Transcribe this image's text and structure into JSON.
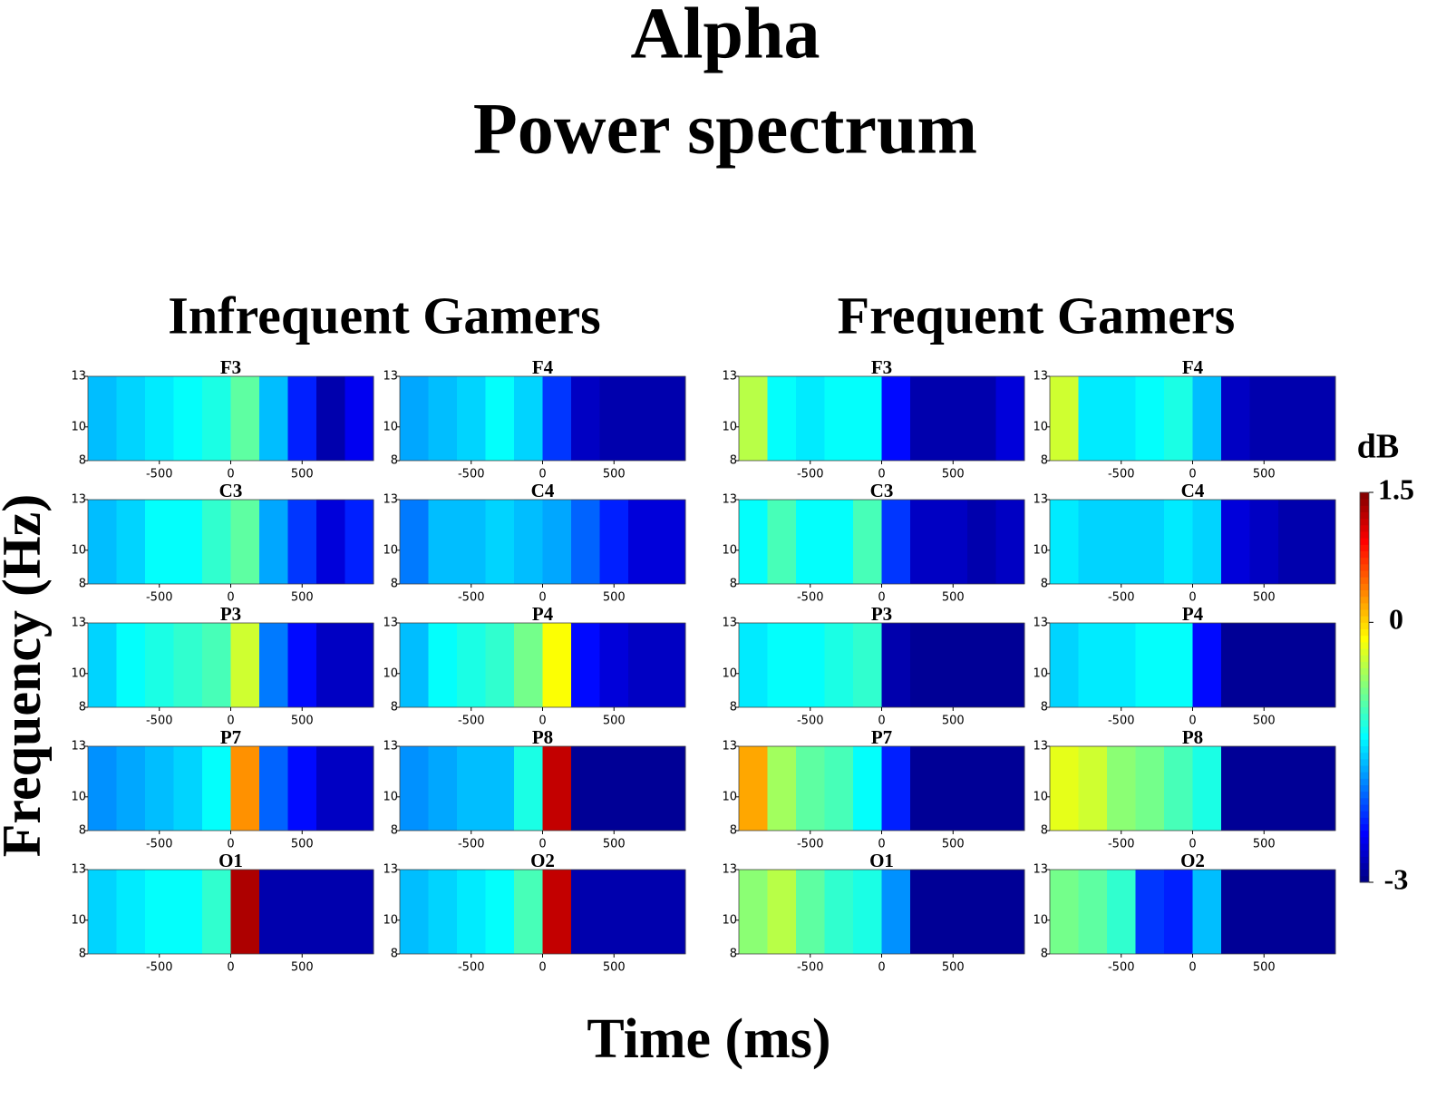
{
  "title": [
    "Alpha",
    "Power spectrum"
  ],
  "groups": [
    "Infrequent Gamers",
    "Frequent Gamers"
  ],
  "xlabel": "Time (ms)",
  "ylabel": "Frequency (Hz)",
  "colorbar": {
    "label": "dB",
    "lim": [
      -3,
      1.5
    ],
    "ticks": [
      1.5,
      0,
      -3
    ]
  },
  "chart_data": [
    {
      "type": "heatmap",
      "title": "F3",
      "x": [
        -900,
        -700,
        -500,
        -300,
        -100,
        100,
        300,
        500,
        700,
        900
      ],
      "values": [
        -1.6,
        -1.5,
        -1.4,
        -1.3,
        -1.2,
        -0.9,
        -1.6,
        -2.3,
        -2.8,
        -2.5
      ],
      "xlim": [
        -1000,
        1000
      ],
      "ylim": [
        8,
        13
      ],
      "xticks": [
        -500,
        0,
        500
      ],
      "yticks": [
        8,
        10,
        13
      ]
    },
    {
      "type": "heatmap",
      "title": "F4",
      "x": [
        -900,
        -700,
        -500,
        -300,
        -100,
        100,
        300,
        500,
        700,
        900
      ],
      "values": [
        -1.7,
        -1.6,
        -1.5,
        -1.3,
        -1.5,
        -2.2,
        -2.7,
        -2.8,
        -2.8,
        -2.8
      ],
      "xlim": [
        -1000,
        1000
      ],
      "ylim": [
        8,
        13
      ],
      "xticks": [
        -500,
        0,
        500
      ],
      "yticks": [
        8,
        10,
        13
      ]
    },
    {
      "type": "heatmap",
      "title": "C3",
      "x": [
        -900,
        -700,
        -500,
        -300,
        -100,
        100,
        300,
        500,
        700,
        900
      ],
      "values": [
        -1.6,
        -1.5,
        -1.3,
        -1.3,
        -1.1,
        -0.9,
        -1.7,
        -2.2,
        -2.6,
        -2.3
      ],
      "xlim": [
        -1000,
        1000
      ],
      "ylim": [
        8,
        13
      ],
      "xticks": [
        -500,
        0,
        500
      ],
      "yticks": [
        8,
        10,
        13
      ]
    },
    {
      "type": "heatmap",
      "title": "C4",
      "x": [
        -900,
        -700,
        -500,
        -300,
        -100,
        100,
        300,
        500,
        700,
        900
      ],
      "values": [
        -1.9,
        -1.6,
        -1.6,
        -1.5,
        -1.6,
        -1.7,
        -2.0,
        -2.3,
        -2.6,
        -2.6
      ],
      "xlim": [
        -1000,
        1000
      ],
      "ylim": [
        8,
        13
      ],
      "xticks": [
        -500,
        0,
        500
      ],
      "yticks": [
        8,
        10,
        13
      ]
    },
    {
      "type": "heatmap",
      "title": "P3",
      "x": [
        -900,
        -700,
        -500,
        -300,
        -100,
        100,
        300,
        500,
        700,
        900
      ],
      "values": [
        -1.5,
        -1.3,
        -1.2,
        -1.1,
        -1.0,
        -0.4,
        -1.9,
        -2.4,
        -2.7,
        -2.7
      ],
      "xlim": [
        -1000,
        1000
      ],
      "ylim": [
        8,
        13
      ],
      "xticks": [
        -500,
        0,
        500
      ],
      "yticks": [
        8,
        10,
        13
      ]
    },
    {
      "type": "heatmap",
      "title": "P4",
      "x": [
        -900,
        -700,
        -500,
        -300,
        -100,
        100,
        300,
        500,
        700,
        900
      ],
      "values": [
        -1.6,
        -1.3,
        -1.2,
        -1.1,
        -0.8,
        -0.2,
        -2.4,
        -2.6,
        -2.7,
        -2.7
      ],
      "xlim": [
        -1000,
        1000
      ],
      "ylim": [
        8,
        13
      ],
      "xticks": [
        -500,
        0,
        500
      ],
      "yticks": [
        8,
        10,
        13
      ]
    },
    {
      "type": "heatmap",
      "title": "P7",
      "x": [
        -900,
        -700,
        -500,
        -300,
        -100,
        100,
        300,
        500,
        700,
        900
      ],
      "values": [
        -1.8,
        -1.7,
        -1.6,
        -1.5,
        -1.3,
        0.3,
        -2.0,
        -2.4,
        -2.7,
        -2.7
      ],
      "xlim": [
        -1000,
        1000
      ],
      "ylim": [
        8,
        13
      ],
      "xticks": [
        -500,
        0,
        500
      ],
      "yticks": [
        8,
        10,
        13
      ]
    },
    {
      "type": "heatmap",
      "title": "P8",
      "x": [
        -900,
        -700,
        -500,
        -300,
        -100,
        100,
        300,
        500,
        700,
        900
      ],
      "values": [
        -1.8,
        -1.7,
        -1.6,
        -1.6,
        -1.2,
        1.2,
        -2.9,
        -2.9,
        -2.9,
        -2.9
      ],
      "xlim": [
        -1000,
        1000
      ],
      "ylim": [
        8,
        13
      ],
      "xticks": [
        -500,
        0,
        500
      ],
      "yticks": [
        8,
        10,
        13
      ]
    },
    {
      "type": "heatmap",
      "title": "O1",
      "x": [
        -900,
        -700,
        -500,
        -300,
        -100,
        100,
        300,
        500,
        700,
        900
      ],
      "values": [
        -1.5,
        -1.4,
        -1.3,
        -1.3,
        -1.1,
        1.3,
        -2.8,
        -2.8,
        -2.8,
        -2.8
      ],
      "xlim": [
        -1000,
        1000
      ],
      "ylim": [
        8,
        13
      ],
      "xticks": [
        -500,
        0,
        500
      ],
      "yticks": [
        8,
        10,
        13
      ]
    },
    {
      "type": "heatmap",
      "title": "O2",
      "x": [
        -900,
        -700,
        -500,
        -300,
        -100,
        100,
        300,
        500,
        700,
        900
      ],
      "values": [
        -1.6,
        -1.5,
        -1.4,
        -1.3,
        -1.0,
        1.2,
        -2.8,
        -2.8,
        -2.8,
        -2.8
      ],
      "xlim": [
        -1000,
        1000
      ],
      "ylim": [
        8,
        13
      ],
      "xticks": [
        -500,
        0,
        500
      ],
      "yticks": [
        8,
        10,
        13
      ]
    },
    {
      "type": "heatmap",
      "title": "F3",
      "x": [
        -900,
        -700,
        -500,
        -300,
        -100,
        100,
        300,
        500,
        700,
        900
      ],
      "values": [
        -0.5,
        -1.3,
        -1.4,
        -1.3,
        -1.3,
        -2.4,
        -2.8,
        -2.8,
        -2.8,
        -2.6
      ],
      "xlim": [
        -1000,
        1000
      ],
      "ylim": [
        8,
        13
      ],
      "xticks": [
        -500,
        0,
        500
      ],
      "yticks": [
        8,
        10,
        13
      ]
    },
    {
      "type": "heatmap",
      "title": "F4",
      "x": [
        -900,
        -700,
        -500,
        -300,
        -100,
        100,
        300,
        500,
        700,
        900
      ],
      "values": [
        -0.4,
        -1.4,
        -1.4,
        -1.3,
        -1.2,
        -1.6,
        -2.7,
        -2.8,
        -2.8,
        -2.8
      ],
      "xlim": [
        -1000,
        1000
      ],
      "ylim": [
        8,
        13
      ],
      "xticks": [
        -500,
        0,
        500
      ],
      "yticks": [
        8,
        10,
        13
      ]
    },
    {
      "type": "heatmap",
      "title": "C3",
      "x": [
        -900,
        -700,
        -500,
        -300,
        -100,
        100,
        300,
        500,
        700,
        900
      ],
      "values": [
        -1.3,
        -1.0,
        -1.3,
        -1.3,
        -1.0,
        -2.2,
        -2.7,
        -2.7,
        -2.8,
        -2.7
      ],
      "xlim": [
        -1000,
        1000
      ],
      "ylim": [
        8,
        13
      ],
      "xticks": [
        -500,
        0,
        500
      ],
      "yticks": [
        8,
        10,
        13
      ]
    },
    {
      "type": "heatmap",
      "title": "C4",
      "x": [
        -900,
        -700,
        -500,
        -300,
        -100,
        100,
        300,
        500,
        700,
        900
      ],
      "values": [
        -1.4,
        -1.5,
        -1.5,
        -1.5,
        -1.4,
        -1.5,
        -2.6,
        -2.7,
        -2.8,
        -2.8
      ],
      "xlim": [
        -1000,
        1000
      ],
      "ylim": [
        8,
        13
      ],
      "xticks": [
        -500,
        0,
        500
      ],
      "yticks": [
        8,
        10,
        13
      ]
    },
    {
      "type": "heatmap",
      "title": "P3",
      "x": [
        -900,
        -700,
        -500,
        -300,
        -100,
        100,
        300,
        500,
        700,
        900
      ],
      "values": [
        -1.4,
        -1.3,
        -1.3,
        -1.2,
        -1.1,
        -2.8,
        -2.9,
        -2.9,
        -2.9,
        -2.9
      ],
      "xlim": [
        -1000,
        1000
      ],
      "ylim": [
        8,
        13
      ],
      "xticks": [
        -500,
        0,
        500
      ],
      "yticks": [
        8,
        10,
        13
      ]
    },
    {
      "type": "heatmap",
      "title": "P4",
      "x": [
        -900,
        -700,
        -500,
        -300,
        -100,
        100,
        300,
        500,
        700,
        900
      ],
      "values": [
        -1.5,
        -1.4,
        -1.4,
        -1.3,
        -1.3,
        -2.4,
        -2.9,
        -2.9,
        -2.9,
        -2.9
      ],
      "xlim": [
        -1000,
        1000
      ],
      "ylim": [
        8,
        13
      ],
      "xticks": [
        -500,
        0,
        500
      ],
      "yticks": [
        8,
        10,
        13
      ]
    },
    {
      "type": "heatmap",
      "title": "P7",
      "x": [
        -900,
        -700,
        -500,
        -300,
        -100,
        100,
        300,
        500,
        700,
        900
      ],
      "values": [
        0.2,
        -0.6,
        -0.9,
        -1.0,
        -1.3,
        -2.3,
        -2.9,
        -2.9,
        -2.9,
        -2.9
      ],
      "xlim": [
        -1000,
        1000
      ],
      "ylim": [
        8,
        13
      ],
      "xticks": [
        -500,
        0,
        500
      ],
      "yticks": [
        8,
        10,
        13
      ]
    },
    {
      "type": "heatmap",
      "title": "P8",
      "x": [
        -900,
        -700,
        -500,
        -300,
        -100,
        100,
        300,
        500,
        700,
        900
      ],
      "values": [
        -0.3,
        -0.4,
        -0.7,
        -0.8,
        -1.0,
        -1.2,
        -2.9,
        -2.9,
        -2.9,
        -2.9
      ],
      "xlim": [
        -1000,
        1000
      ],
      "ylim": [
        8,
        13
      ],
      "xticks": [
        -500,
        0,
        500
      ],
      "yticks": [
        8,
        10,
        13
      ]
    },
    {
      "type": "heatmap",
      "title": "O1",
      "x": [
        -900,
        -700,
        -500,
        -300,
        -100,
        100,
        300,
        500,
        700,
        900
      ],
      "values": [
        -0.7,
        -0.5,
        -0.9,
        -1.1,
        -1.2,
        -1.8,
        -2.9,
        -2.9,
        -2.9,
        -2.9
      ],
      "xlim": [
        -1000,
        1000
      ],
      "ylim": [
        8,
        13
      ],
      "xticks": [
        -500,
        0,
        500
      ],
      "yticks": [
        8,
        10,
        13
      ]
    },
    {
      "type": "heatmap",
      "title": "O2",
      "x": [
        -900,
        -700,
        -500,
        -300,
        -100,
        100,
        300,
        500,
        700,
        900
      ],
      "values": [
        -0.8,
        -0.9,
        -1.1,
        -2.2,
        -2.3,
        -1.6,
        -2.9,
        -2.9,
        -2.9,
        -2.9
      ],
      "xlim": [
        -1000,
        1000
      ],
      "ylim": [
        8,
        13
      ],
      "xticks": [
        -500,
        0,
        500
      ],
      "yticks": [
        8,
        10,
        13
      ]
    }
  ]
}
